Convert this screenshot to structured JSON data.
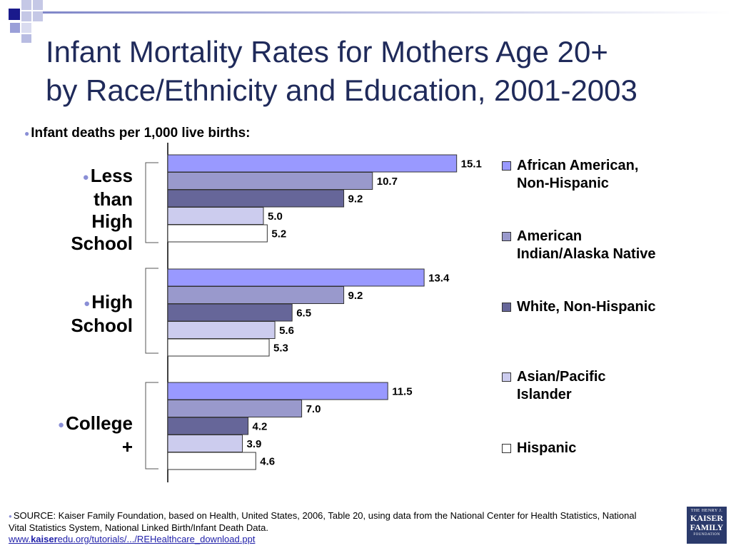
{
  "title": {
    "line1": "Infant Mortality Rates for Mothers Age 20+",
    "line2": "by Race/Ethnicity and Education, 2001-2003"
  },
  "colors": {
    "title": "#1f2a5a",
    "bullet": "#8a8fd6"
  },
  "chart_data": {
    "type": "bar",
    "orientation": "horizontal",
    "subtitle": "Infant deaths per 1,000 live births:",
    "categories": [
      "Less than High School",
      "High School",
      "College +"
    ],
    "series": [
      {
        "name": "African American, Non-Hispanic",
        "color": "#9999ff",
        "values": [
          15.1,
          13.4,
          11.5
        ]
      },
      {
        "name": "American Indian/Alaska Native",
        "color": "#9999cc",
        "values": [
          10.7,
          9.2,
          7.0
        ]
      },
      {
        "name": "White, Non-Hispanic",
        "color": "#666699",
        "values": [
          9.2,
          6.5,
          4.2
        ]
      },
      {
        "name": "Asian/Pacific Islander",
        "color": "#ccccee",
        "values": [
          5.0,
          5.6,
          3.9
        ]
      },
      {
        "name": "Hispanic",
        "color": "#ffffff",
        "values": [
          5.2,
          5.3,
          4.6
        ]
      }
    ],
    "data_labels": [
      [
        "15.1",
        "10.7",
        "9.2",
        "5.0",
        "5.2"
      ],
      [
        "13.4",
        "9.2",
        "6.5",
        "5.6",
        "5.3"
      ],
      [
        "11.5",
        "7.0",
        "4.2",
        "3.9",
        "4.6"
      ]
    ],
    "xlim": [
      0,
      16
    ],
    "grid": false,
    "legend_position": "right"
  },
  "group_labels": [
    [
      "Less",
      "than",
      "High",
      "School"
    ],
    [
      "High",
      "School"
    ],
    [
      "College",
      "+"
    ]
  ],
  "legend": [
    [
      "African American,",
      "Non-Hispanic"
    ],
    [
      "American",
      "Indian/Alaska Native"
    ],
    [
      "White, Non-Hispanic"
    ],
    [
      "Asian/Pacific",
      "Islander"
    ],
    [
      "Hispanic"
    ]
  ],
  "source": {
    "text": "SOURCE:  Kaiser Family Foundation, based on Health, United States, 2006, Table 20, using data from the National Center for Health Statistics, National Vital Statistics System, National Linked Birth/Infant Death Data.",
    "link_prefix": "www.",
    "link_bold": "kaiser",
    "link_rest": "edu.org/tutorials/.../REHealthcare_download.ppt"
  },
  "logo": {
    "line1": "THE HENRY J.",
    "line2": "KAISER",
    "line3": "FAMILY",
    "line4": "FOUNDATION"
  }
}
